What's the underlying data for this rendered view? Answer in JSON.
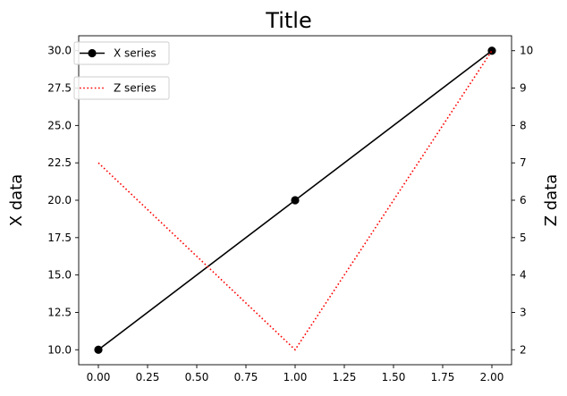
{
  "chart_data": {
    "type": "line",
    "title": "Title",
    "xlabel": "",
    "ylabel": "X data",
    "y2label": "Z data",
    "xlim": [
      -0.1,
      2.1
    ],
    "ylim": [
      9.0,
      31.0
    ],
    "y2lim": [
      1.6,
      10.4
    ],
    "x_ticks": [
      0.0,
      0.25,
      0.5,
      0.75,
      1.0,
      1.25,
      1.5,
      1.75,
      2.0
    ],
    "x_tick_labels": [
      "0.00",
      "0.25",
      "0.50",
      "0.75",
      "1.00",
      "1.25",
      "1.50",
      "1.75",
      "2.00"
    ],
    "y_ticks": [
      10.0,
      12.5,
      15.0,
      17.5,
      20.0,
      22.5,
      25.0,
      27.5,
      30.0
    ],
    "y_tick_labels": [
      "10.0",
      "12.5",
      "15.0",
      "17.5",
      "20.0",
      "22.5",
      "25.0",
      "27.5",
      "30.0"
    ],
    "y2_ticks": [
      2,
      3,
      4,
      5,
      6,
      7,
      8,
      9,
      10
    ],
    "y2_tick_labels": [
      "2",
      "3",
      "4",
      "5",
      "6",
      "7",
      "8",
      "9",
      "10"
    ],
    "grid": false,
    "series": [
      {
        "name": "X series",
        "axis": "left",
        "x": [
          0,
          1,
          2
        ],
        "values": [
          10,
          20,
          30
        ],
        "color": "#000000",
        "line_style": "solid",
        "marker": "circle"
      },
      {
        "name": "Z series",
        "axis": "right",
        "x": [
          0,
          1,
          2
        ],
        "values": [
          7,
          2,
          10
        ],
        "color": "#ff0000",
        "line_style": "dotted",
        "marker": "none"
      }
    ],
    "legends": [
      {
        "placement": "top-left",
        "entries": [
          "X series"
        ]
      },
      {
        "placement": "top-left",
        "entries": [
          "Z series"
        ]
      }
    ]
  }
}
